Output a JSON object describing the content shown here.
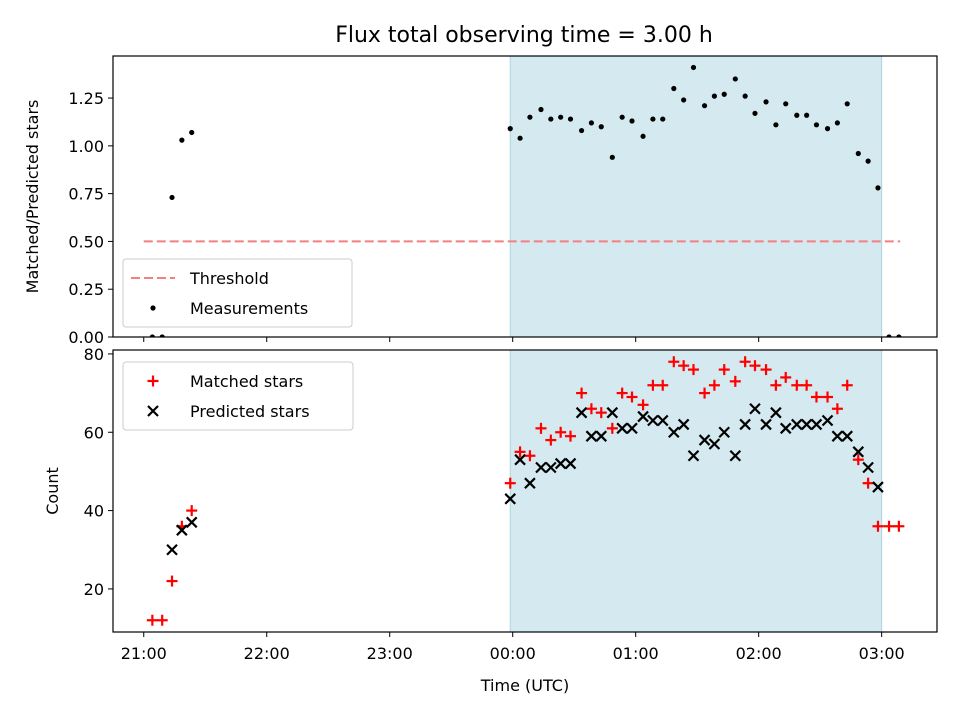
{
  "title": "Flux total observing time = 3.00 h",
  "x_tick_labels": [
    "21:00",
    "22:00",
    "23:00",
    "00:00",
    "01:00",
    "02:00",
    "03:00"
  ],
  "colors": {
    "shade": "#d4eaf0",
    "shade_edge": "#a9d4de",
    "threshold": "#f47f7f",
    "matched": "#ff0000",
    "predicted": "#000000",
    "measurements": "#000000"
  },
  "chart_data": [
    {
      "type": "scatter",
      "ylabel": "Matched/Predicted stars",
      "xlabel": "",
      "x_unit": "hours relative to 00:00 UTC",
      "xlim": [
        -3.25,
        3.45
      ],
      "ylim": [
        0,
        1.47
      ],
      "y_ticks": [
        "0.00",
        "0.25",
        "0.50",
        "0.75",
        "1.00",
        "1.25"
      ],
      "y_tick_values": [
        0,
        0.25,
        0.5,
        0.75,
        1.0,
        1.25
      ],
      "shaded_span": [
        -0.02,
        3.0
      ],
      "legend": {
        "placement": "lower-left",
        "entries": [
          "Threshold",
          "Measurements"
        ]
      },
      "threshold": {
        "name": "Threshold",
        "y": 0.5,
        "x_range": [
          -3.0,
          3.15
        ]
      },
      "series": [
        {
          "name": "Measurements",
          "x": [
            -2.93,
            -2.85,
            -2.77,
            -2.69,
            -2.61,
            -0.02,
            0.06,
            0.14,
            0.23,
            0.31,
            0.39,
            0.47,
            0.56,
            0.64,
            0.72,
            0.81,
            0.89,
            0.97,
            1.06,
            1.14,
            1.22,
            1.31,
            1.39,
            1.47,
            1.56,
            1.64,
            1.72,
            1.81,
            1.89,
            1.97,
            2.06,
            2.14,
            2.22,
            2.31,
            2.39,
            2.47,
            2.56,
            2.64,
            2.72,
            2.81,
            2.89,
            2.97,
            3.06,
            3.14
          ],
          "y": [
            0.0,
            0.0,
            0.73,
            1.03,
            1.07,
            1.09,
            1.04,
            1.15,
            1.19,
            1.14,
            1.15,
            1.14,
            1.08,
            1.12,
            1.1,
            0.94,
            1.15,
            1.13,
            1.05,
            1.14,
            1.14,
            1.3,
            1.24,
            1.41,
            1.21,
            1.26,
            1.27,
            1.35,
            1.26,
            1.17,
            1.23,
            1.11,
            1.22,
            1.16,
            1.16,
            1.11,
            1.09,
            1.12,
            1.22,
            0.96,
            0.92,
            0.78,
            0.0,
            0.0
          ]
        }
      ]
    },
    {
      "type": "scatter",
      "ylabel": "Count",
      "xlabel": "Time (UTC)",
      "x_unit": "hours relative to 00:00 UTC",
      "xlim": [
        -3.25,
        3.45
      ],
      "ylim": [
        9,
        81
      ],
      "y_ticks": [
        "20",
        "40",
        "60",
        "80"
      ],
      "y_tick_values": [
        20,
        40,
        60,
        80
      ],
      "shaded_span": [
        -0.02,
        3.0
      ],
      "legend": {
        "placement": "upper-left",
        "entries": [
          "Matched stars",
          "Predicted stars"
        ]
      },
      "series": [
        {
          "name": "Matched stars",
          "marker": "plus",
          "x": [
            -2.93,
            -2.85,
            -2.77,
            -2.69,
            -2.61,
            -0.02,
            0.06,
            0.14,
            0.23,
            0.31,
            0.39,
            0.47,
            0.56,
            0.64,
            0.72,
            0.81,
            0.89,
            0.97,
            1.06,
            1.14,
            1.22,
            1.31,
            1.39,
            1.47,
            1.56,
            1.64,
            1.72,
            1.81,
            1.89,
            1.97,
            2.06,
            2.14,
            2.22,
            2.31,
            2.39,
            2.47,
            2.56,
            2.64,
            2.72,
            2.81,
            2.89,
            2.97,
            3.06,
            3.14
          ],
          "y": [
            12,
            12,
            22,
            36,
            40,
            47,
            55,
            54,
            61,
            58,
            60,
            59,
            70,
            66,
            65,
            61,
            70,
            69,
            67,
            72,
            72,
            78,
            77,
            76,
            70,
            72,
            76,
            73,
            78,
            77,
            76,
            72,
            74,
            72,
            72,
            69,
            69,
            66,
            72,
            53,
            47,
            36,
            36,
            36
          ]
        },
        {
          "name": "Predicted stars",
          "marker": "x",
          "x": [
            -2.77,
            -2.69,
            -2.61,
            -0.02,
            0.06,
            0.14,
            0.23,
            0.31,
            0.39,
            0.47,
            0.56,
            0.64,
            0.72,
            0.81,
            0.89,
            0.97,
            1.06,
            1.14,
            1.22,
            1.31,
            1.39,
            1.47,
            1.56,
            1.64,
            1.72,
            1.81,
            1.89,
            1.97,
            2.06,
            2.14,
            2.22,
            2.31,
            2.39,
            2.47,
            2.56,
            2.64,
            2.72,
            2.81,
            2.89,
            2.97
          ],
          "y": [
            30,
            35,
            37,
            43,
            53,
            47,
            51,
            51,
            52,
            52,
            65,
            59,
            59,
            65,
            61,
            61,
            64,
            63,
            63,
            60,
            62,
            54,
            58,
            57,
            60,
            54,
            62,
            66,
            62,
            65,
            61,
            62,
            62,
            62,
            63,
            59,
            59,
            55,
            51,
            46
          ]
        }
      ]
    }
  ]
}
